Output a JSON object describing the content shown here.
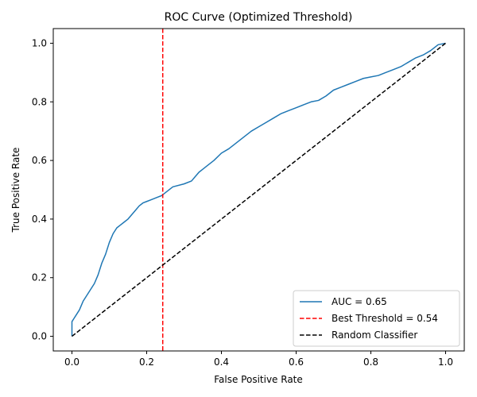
{
  "chart_data": {
    "type": "line",
    "title": "ROC Curve (Optimized Threshold)",
    "xlabel": "False Positive Rate",
    "ylabel": "True Positive Rate",
    "xlim": [
      -0.05,
      1.05
    ],
    "ylim": [
      -0.05,
      1.05
    ],
    "xticks": [
      "0.0",
      "0.2",
      "0.4",
      "0.6",
      "0.8",
      "1.0"
    ],
    "yticks": [
      "0.0",
      "0.2",
      "0.4",
      "0.6",
      "0.8",
      "1.0"
    ],
    "grid": false,
    "legend_position": "lower-right",
    "series": [
      {
        "name": "AUC = 0.65",
        "kind": "roc",
        "color": "#1f77b4",
        "x": [
          0.0,
          0.0,
          0.005,
          0.01,
          0.02,
          0.03,
          0.04,
          0.05,
          0.06,
          0.07,
          0.08,
          0.09,
          0.1,
          0.11,
          0.12,
          0.13,
          0.14,
          0.15,
          0.16,
          0.17,
          0.18,
          0.19,
          0.2,
          0.21,
          0.22,
          0.23,
          0.24,
          0.25,
          0.27,
          0.3,
          0.32,
          0.33,
          0.34,
          0.35,
          0.36,
          0.38,
          0.4,
          0.42,
          0.44,
          0.46,
          0.48,
          0.5,
          0.52,
          0.54,
          0.56,
          0.58,
          0.6,
          0.62,
          0.64,
          0.66,
          0.68,
          0.7,
          0.72,
          0.74,
          0.76,
          0.78,
          0.8,
          0.82,
          0.84,
          0.86,
          0.88,
          0.9,
          0.92,
          0.94,
          0.96,
          0.98,
          1.0
        ],
        "y": [
          0.0,
          0.05,
          0.06,
          0.07,
          0.09,
          0.12,
          0.14,
          0.16,
          0.18,
          0.21,
          0.25,
          0.28,
          0.32,
          0.35,
          0.37,
          0.38,
          0.39,
          0.4,
          0.415,
          0.43,
          0.445,
          0.455,
          0.46,
          0.465,
          0.47,
          0.475,
          0.48,
          0.49,
          0.51,
          0.52,
          0.53,
          0.545,
          0.56,
          0.57,
          0.58,
          0.6,
          0.625,
          0.64,
          0.66,
          0.68,
          0.7,
          0.715,
          0.73,
          0.745,
          0.76,
          0.77,
          0.78,
          0.79,
          0.8,
          0.805,
          0.82,
          0.84,
          0.85,
          0.86,
          0.87,
          0.88,
          0.885,
          0.89,
          0.9,
          0.91,
          0.92,
          0.935,
          0.95,
          0.96,
          0.975,
          0.995,
          1.0
        ]
      },
      {
        "name": "Best Threshold = 0.54",
        "kind": "vline",
        "color": "#ff0000",
        "x": 0.243
      },
      {
        "name": "Random Classifier",
        "kind": "diagonal",
        "color": "#000000",
        "x": [
          0,
          1
        ],
        "y": [
          0,
          1
        ]
      }
    ]
  }
}
